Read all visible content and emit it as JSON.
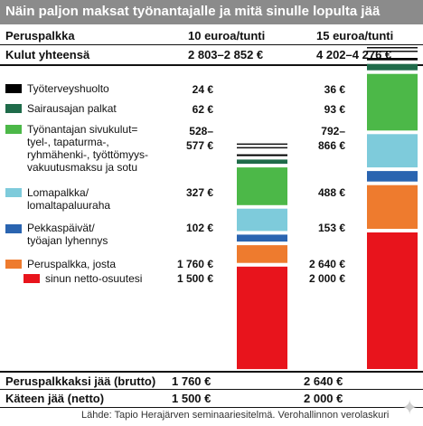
{
  "header": {
    "title": "Näin paljon maksat työnantajalle ja mitä sinulle lopulta jää"
  },
  "columns": {
    "label": "Peruspalkka",
    "col1": "10 euroa/tunti",
    "col2": "15 euroa/tunti"
  },
  "totals": {
    "label": "Kulut yhteensä",
    "col1": "2 803–2 852 €",
    "col2": "4 202–4 276 €"
  },
  "legend": [
    {
      "label": "Työterveyshuolto",
      "color": "#000000"
    },
    {
      "label": "Sairausajan palkat",
      "color": "#1f6b4a"
    },
    {
      "label": "Työnantajan sivukulut=\ntyel-, tapaturma-,\nryhmähenki-, työttömyys-\nvakuutusmaksu ja sotu",
      "color": "#4cb848"
    },
    {
      "label": "Lomapalkka/\nlomaltapaluuraha",
      "color": "#7ecbdb"
    },
    {
      "label": "Pekkaspäivät/\ntyöajan lyhennys",
      "color": "#2a64b0"
    },
    {
      "label": "Peruspalkka, josta",
      "color": "#ee7b2e"
    },
    {
      "label": "sinun netto-osuutesi",
      "color": "#e8141c"
    }
  ],
  "value_labels": {
    "col1": [
      "24 €",
      "62 €",
      "528–\n577 €",
      "327 €",
      "102 €",
      "1 760 €",
      "1 500 €"
    ],
    "col2": [
      "36 €",
      "93 €",
      "792–\n866 €",
      "488 €",
      "153 €",
      "2 640 €",
      "2 000 €"
    ]
  },
  "footer": {
    "brutto_label": "Peruspalkkaksi jää (brutto)",
    "brutto_col1": "1 760 €",
    "brutto_col2": "2 640 €",
    "netto_label": "Käteen jää (netto)",
    "netto_col1": "1 500 €",
    "netto_col2": "2 000 €",
    "source": "Lähde: Tapio Herajärven seminaariesitelmä. Verohallinnon verolaskuri"
  },
  "chart_data": {
    "type": "bar",
    "stacked": true,
    "categories": [
      "10 euroa/tunti",
      "15 euroa/tunti"
    ],
    "series": [
      {
        "name": "sinun netto-osuutesi",
        "values": [
          1500,
          2000
        ],
        "color": "#e8141c"
      },
      {
        "name": "Peruspalkka, josta",
        "values": [
          260,
          640
        ],
        "color": "#ee7b2e"
      },
      {
        "name": "Pekkaspäivät/työajan lyhennys",
        "values": [
          102,
          153
        ],
        "color": "#2a64b0"
      },
      {
        "name": "Lomapalkka/lomaltapaluuraha",
        "values": [
          327,
          488
        ],
        "color": "#7ecbdb"
      },
      {
        "name": "Työnantajan sivukulut",
        "values": [
          552,
          829
        ],
        "color": "#4cb848"
      },
      {
        "name": "Sairausajan palkat",
        "values": [
          62,
          93
        ],
        "color": "#1f6b4a"
      },
      {
        "name": "Työterveyshuolto",
        "values": [
          24,
          36
        ],
        "color": "#000000"
      }
    ],
    "totals": [
      "2 803–2 852 €",
      "4 202–4 276 €"
    ]
  }
}
